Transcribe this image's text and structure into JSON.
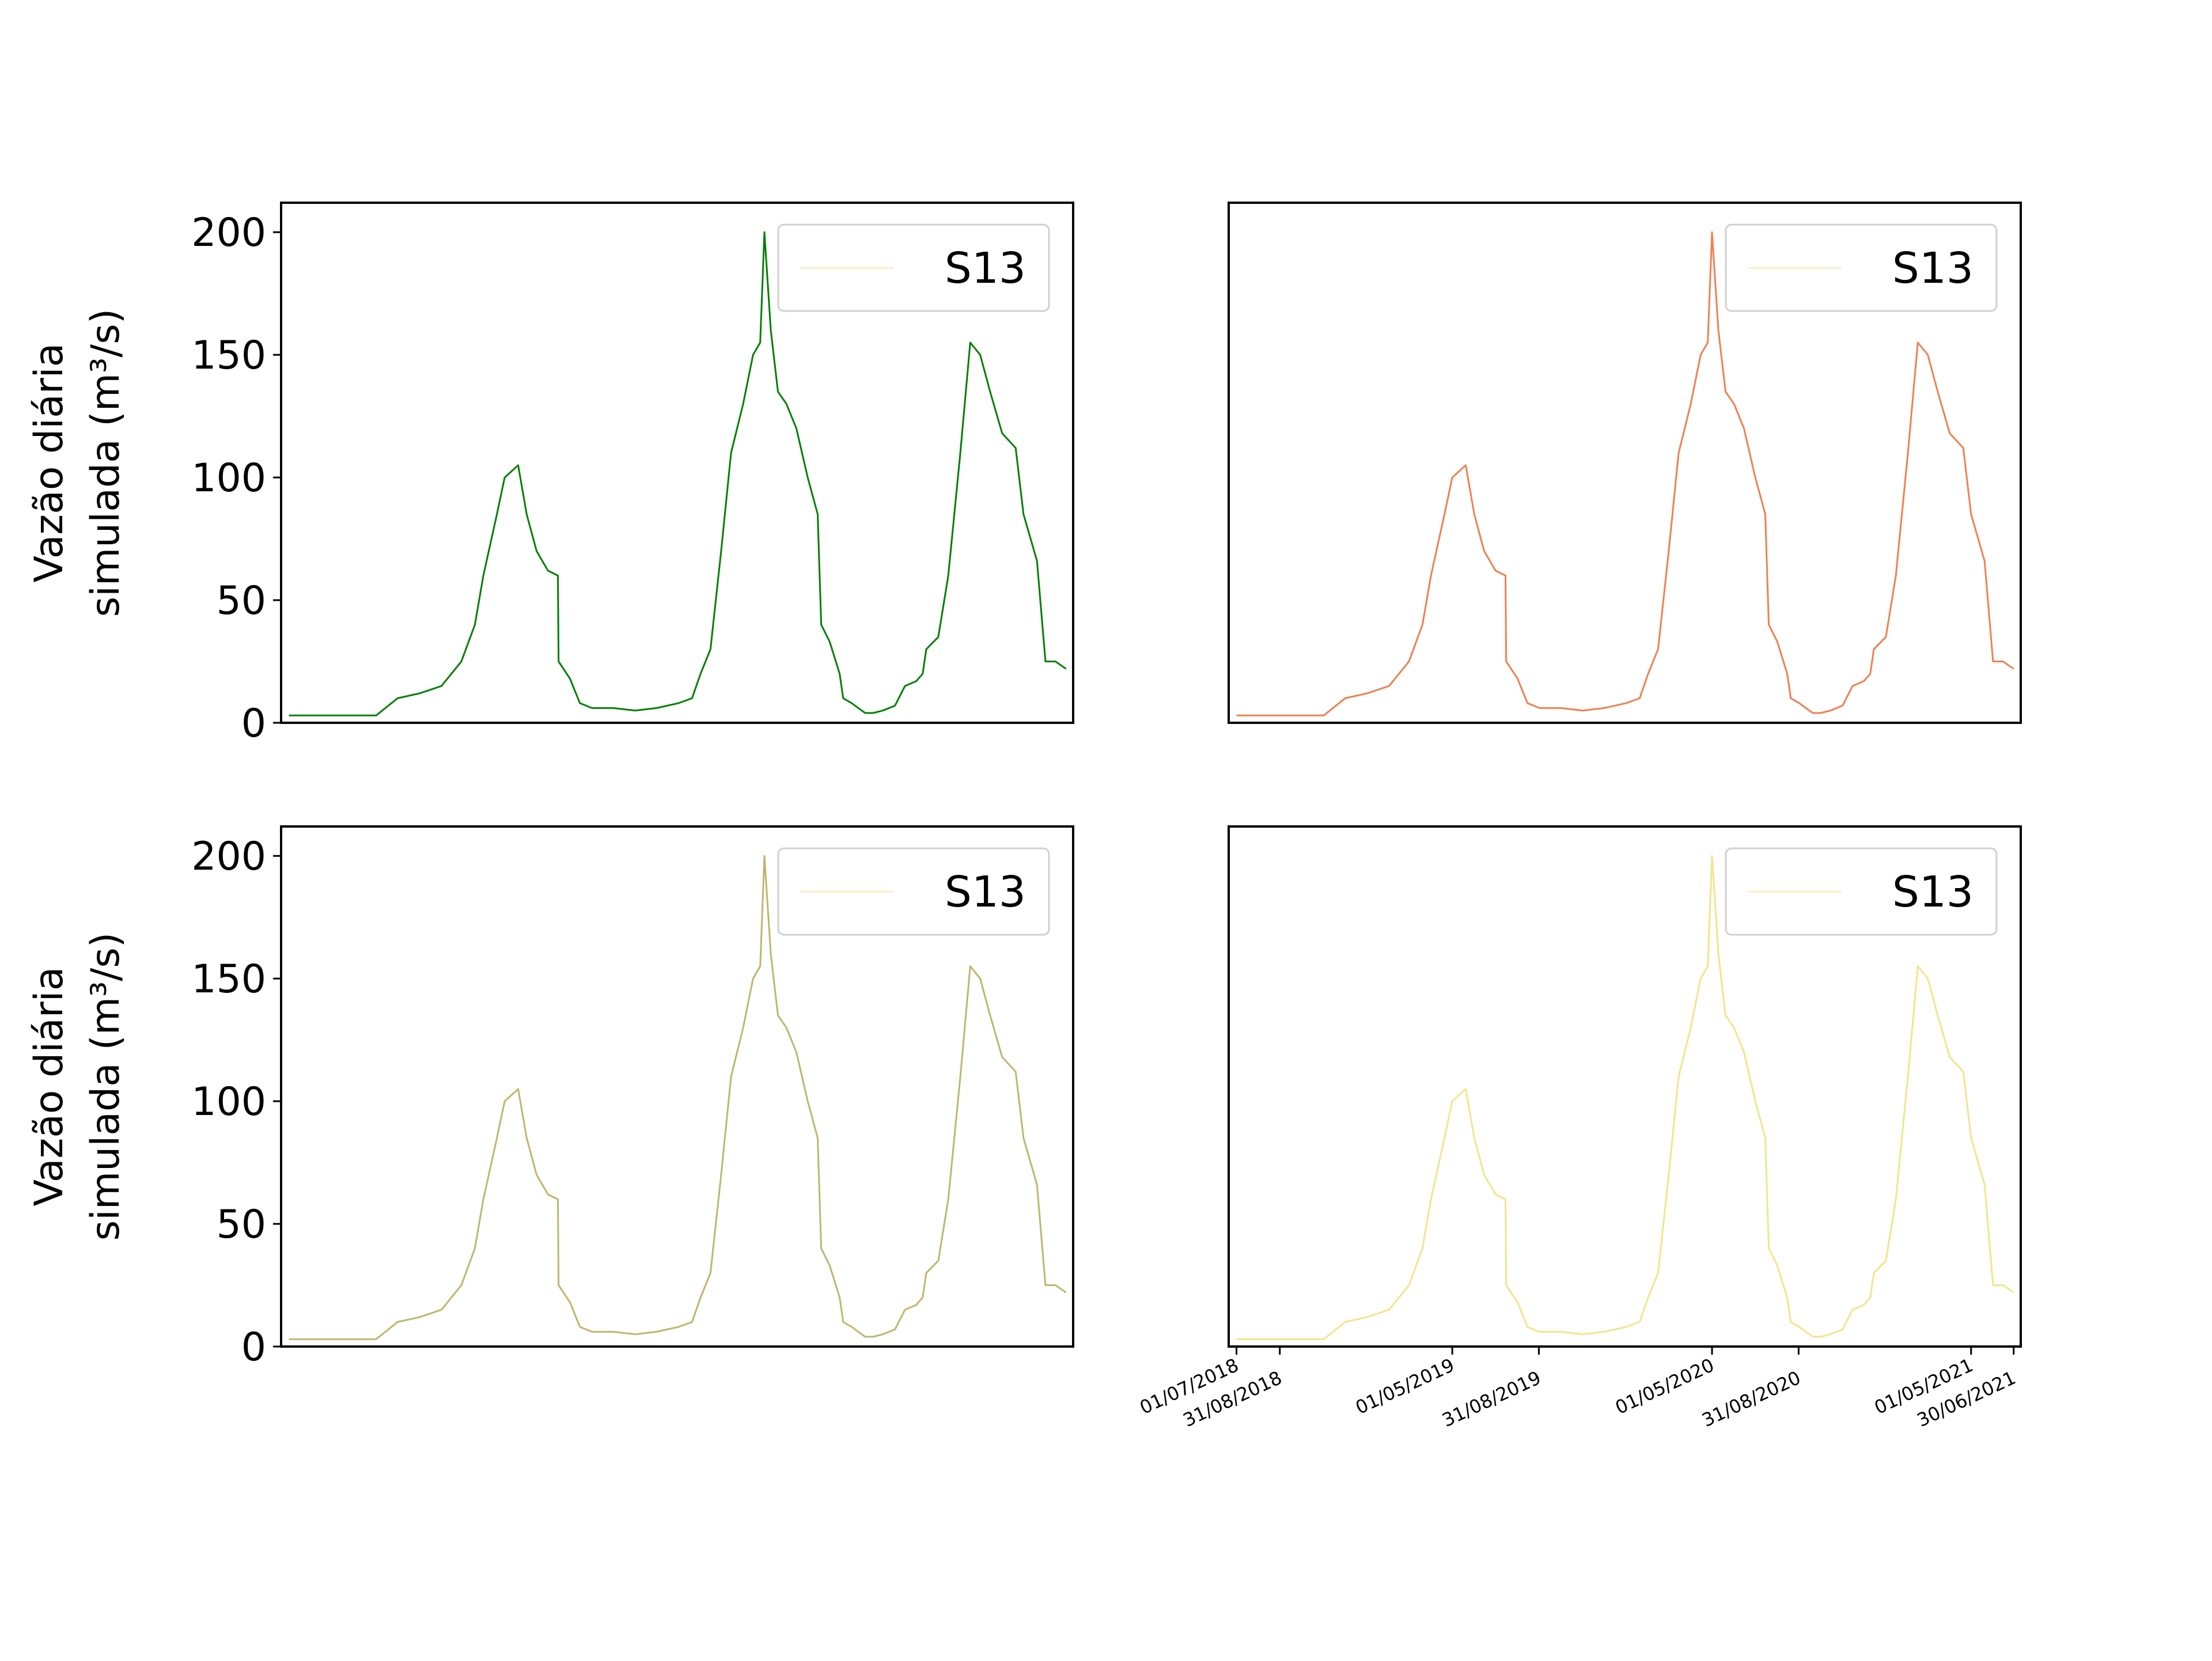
{
  "figure": {
    "y_axis_label_line1": "Vazão diária",
    "y_axis_label_line2": "simulada (m³/s)"
  },
  "chart_data": [
    {
      "type": "line",
      "panel": "top-left",
      "title": "",
      "ylabel": "Vazão diária simulada (m³/s)",
      "ylim": [
        0,
        212
      ],
      "yticks": [
        "0",
        "50",
        "100",
        "150",
        "200"
      ],
      "xlim": [
        "2018-06-20",
        "2021-07-10"
      ],
      "x_axis_visible": false,
      "legend": {
        "label": "S13",
        "position": "upper right"
      },
      "series": [
        {
          "color": "#008000",
          "x": [
            "2018-07-01",
            "2018-11-01",
            "2018-12-01",
            "2019-01-01",
            "2019-02-01",
            "2019-03-01",
            "2019-03-20",
            "2019-04-01",
            "2019-04-20",
            "2019-05-01",
            "2019-05-20",
            "2019-06-01",
            "2019-06-15",
            "2019-07-01",
            "2019-07-15",
            "2019-07-16",
            "2019-08-01",
            "2019-08-15",
            "2019-09-01",
            "2019-10-01",
            "2019-11-01",
            "2019-12-01",
            "2020-01-01",
            "2020-01-20",
            "2020-02-01",
            "2020-02-15",
            "2020-03-01",
            "2020-03-15",
            "2020-04-01",
            "2020-04-15",
            "2020-04-25",
            "2020-05-01",
            "2020-05-10",
            "2020-05-20",
            "2020-06-01",
            "2020-06-15",
            "2020-07-01",
            "2020-07-15",
            "2020-07-20",
            "2020-08-01",
            "2020-08-15",
            "2020-08-20",
            "2020-09-01",
            "2020-09-15",
            "2020-09-20",
            "2020-10-01",
            "2020-10-15",
            "2020-11-01",
            "2020-11-15",
            "2020-12-01",
            "2020-12-10",
            "2020-12-15",
            "2021-01-01",
            "2021-01-15",
            "2021-02-01",
            "2021-02-15",
            "2021-03-01",
            "2021-03-15",
            "2021-04-01",
            "2021-04-20",
            "2021-05-01",
            "2021-05-20",
            "2021-06-01",
            "2021-06-15",
            "2021-06-30"
          ],
          "y": [
            3,
            3,
            10,
            12,
            15,
            25,
            40,
            60,
            85,
            100,
            105,
            85,
            70,
            62,
            60,
            25,
            18,
            8,
            6,
            6,
            5,
            6,
            8,
            10,
            20,
            30,
            70,
            110,
            130,
            150,
            155,
            200,
            160,
            135,
            130,
            120,
            100,
            85,
            40,
            33,
            20,
            10,
            8,
            5,
            4,
            4,
            5,
            7,
            15,
            17,
            20,
            30,
            35,
            60,
            110,
            155,
            150,
            135,
            118,
            112,
            85,
            66,
            25,
            25,
            22
          ]
        }
      ]
    },
    {
      "type": "line",
      "panel": "top-right",
      "title": "",
      "ylim": [
        0,
        212
      ],
      "xlim": [
        "2018-06-20",
        "2021-07-10"
      ],
      "x_axis_visible": false,
      "y_axis_visible": false,
      "legend": {
        "label": "S13",
        "position": "upper right"
      },
      "series": [
        {
          "color": "#f08050",
          "x": [
            "2018-07-01",
            "2018-11-01",
            "2018-12-01",
            "2019-01-01",
            "2019-02-01",
            "2019-03-01",
            "2019-03-20",
            "2019-04-01",
            "2019-04-20",
            "2019-05-01",
            "2019-05-20",
            "2019-06-01",
            "2019-06-15",
            "2019-07-01",
            "2019-07-15",
            "2019-07-16",
            "2019-08-01",
            "2019-08-15",
            "2019-09-01",
            "2019-10-01",
            "2019-11-01",
            "2019-12-01",
            "2020-01-01",
            "2020-01-20",
            "2020-02-01",
            "2020-02-15",
            "2020-03-01",
            "2020-03-15",
            "2020-04-01",
            "2020-04-15",
            "2020-04-25",
            "2020-05-01",
            "2020-05-10",
            "2020-05-20",
            "2020-06-01",
            "2020-06-15",
            "2020-07-01",
            "2020-07-15",
            "2020-07-20",
            "2020-08-01",
            "2020-08-15",
            "2020-08-20",
            "2020-09-01",
            "2020-09-15",
            "2020-09-20",
            "2020-10-01",
            "2020-10-15",
            "2020-11-01",
            "2020-11-15",
            "2020-12-01",
            "2020-12-10",
            "2020-12-15",
            "2021-01-01",
            "2021-01-15",
            "2021-02-01",
            "2021-02-15",
            "2021-03-01",
            "2021-03-15",
            "2021-04-01",
            "2021-04-20",
            "2021-05-01",
            "2021-05-20",
            "2021-06-01",
            "2021-06-15",
            "2021-06-30"
          ],
          "y": [
            3,
            3,
            10,
            12,
            15,
            25,
            40,
            60,
            85,
            100,
            105,
            85,
            70,
            62,
            60,
            25,
            18,
            8,
            6,
            6,
            5,
            6,
            8,
            10,
            20,
            30,
            70,
            110,
            130,
            150,
            155,
            200,
            160,
            135,
            130,
            120,
            100,
            85,
            40,
            33,
            20,
            10,
            8,
            5,
            4,
            4,
            5,
            7,
            15,
            17,
            20,
            30,
            35,
            60,
            110,
            155,
            150,
            135,
            118,
            112,
            85,
            66,
            25,
            25,
            22
          ]
        }
      ]
    },
    {
      "type": "line",
      "panel": "bottom-left",
      "title": "",
      "ylabel": "Vazão diária simulada (m³/s)",
      "ylim": [
        0,
        212
      ],
      "yticks": [
        "0",
        "50",
        "100",
        "150",
        "200"
      ],
      "xlim": [
        "2018-06-20",
        "2021-07-10"
      ],
      "x_axis_visible": false,
      "legend": {
        "label": "S13",
        "position": "upper right"
      },
      "series": [
        {
          "color": "#bdb76b",
          "x": [
            "2018-07-01",
            "2018-11-01",
            "2018-12-01",
            "2019-01-01",
            "2019-02-01",
            "2019-03-01",
            "2019-03-20",
            "2019-04-01",
            "2019-04-20",
            "2019-05-01",
            "2019-05-20",
            "2019-06-01",
            "2019-06-15",
            "2019-07-01",
            "2019-07-15",
            "2019-07-16",
            "2019-08-01",
            "2019-08-15",
            "2019-09-01",
            "2019-10-01",
            "2019-11-01",
            "2019-12-01",
            "2020-01-01",
            "2020-01-20",
            "2020-02-01",
            "2020-02-15",
            "2020-03-01",
            "2020-03-15",
            "2020-04-01",
            "2020-04-15",
            "2020-04-25",
            "2020-05-01",
            "2020-05-10",
            "2020-05-20",
            "2020-06-01",
            "2020-06-15",
            "2020-07-01",
            "2020-07-15",
            "2020-07-20",
            "2020-08-01",
            "2020-08-15",
            "2020-08-20",
            "2020-09-01",
            "2020-09-15",
            "2020-09-20",
            "2020-10-01",
            "2020-10-15",
            "2020-11-01",
            "2020-11-15",
            "2020-12-01",
            "2020-12-10",
            "2020-12-15",
            "2021-01-01",
            "2021-01-15",
            "2021-02-01",
            "2021-02-15",
            "2021-03-01",
            "2021-03-15",
            "2021-04-01",
            "2021-04-20",
            "2021-05-01",
            "2021-05-20",
            "2021-06-01",
            "2021-06-15",
            "2021-06-30"
          ],
          "y": [
            3,
            3,
            10,
            12,
            15,
            25,
            40,
            60,
            85,
            100,
            105,
            85,
            70,
            62,
            60,
            25,
            18,
            8,
            6,
            6,
            5,
            6,
            8,
            10,
            20,
            30,
            70,
            110,
            130,
            150,
            155,
            200,
            160,
            135,
            130,
            120,
            100,
            85,
            40,
            33,
            20,
            10,
            8,
            5,
            4,
            4,
            5,
            7,
            15,
            17,
            20,
            30,
            35,
            60,
            110,
            155,
            150,
            135,
            118,
            112,
            85,
            66,
            25,
            25,
            22
          ]
        }
      ]
    },
    {
      "type": "line",
      "panel": "bottom-right",
      "title": "",
      "ylim": [
        0,
        212
      ],
      "xlim": [
        "2018-06-20",
        "2021-07-10"
      ],
      "y_axis_visible": false,
      "xtick_values": [
        "2018-07-01",
        "2018-08-31",
        "2019-05-01",
        "2019-08-31",
        "2020-05-01",
        "2020-08-31",
        "2021-05-01",
        "2021-06-30"
      ],
      "xticks": [
        "01/07/2018",
        "31/08/2018",
        "01/05/2019",
        "31/08/2019",
        "01/05/2020",
        "31/08/2020",
        "01/05/2021",
        "30/06/2021"
      ],
      "legend": {
        "label": "S13",
        "position": "upper right"
      },
      "series": [
        {
          "color": "#f0e68c",
          "x": [
            "2018-07-01",
            "2018-11-01",
            "2018-12-01",
            "2019-01-01",
            "2019-02-01",
            "2019-03-01",
            "2019-03-20",
            "2019-04-01",
            "2019-04-20",
            "2019-05-01",
            "2019-05-20",
            "2019-06-01",
            "2019-06-15",
            "2019-07-01",
            "2019-07-15",
            "2019-07-16",
            "2019-08-01",
            "2019-08-15",
            "2019-09-01",
            "2019-10-01",
            "2019-11-01",
            "2019-12-01",
            "2020-01-01",
            "2020-01-20",
            "2020-02-01",
            "2020-02-15",
            "2020-03-01",
            "2020-03-15",
            "2020-04-01",
            "2020-04-15",
            "2020-04-25",
            "2020-05-01",
            "2020-05-10",
            "2020-05-20",
            "2020-06-01",
            "2020-06-15",
            "2020-07-01",
            "2020-07-15",
            "2020-07-20",
            "2020-08-01",
            "2020-08-15",
            "2020-08-20",
            "2020-09-01",
            "2020-09-15",
            "2020-09-20",
            "2020-10-01",
            "2020-10-15",
            "2020-11-01",
            "2020-11-15",
            "2020-12-01",
            "2020-12-10",
            "2020-12-15",
            "2021-01-01",
            "2021-01-15",
            "2021-02-01",
            "2021-02-15",
            "2021-03-01",
            "2021-03-15",
            "2021-04-01",
            "2021-04-20",
            "2021-05-01",
            "2021-05-20",
            "2021-06-01",
            "2021-06-15",
            "2021-06-30"
          ],
          "y": [
            3,
            3,
            10,
            12,
            15,
            25,
            40,
            60,
            85,
            100,
            105,
            85,
            70,
            62,
            60,
            25,
            18,
            8,
            6,
            6,
            5,
            6,
            8,
            10,
            20,
            30,
            70,
            110,
            130,
            150,
            155,
            200,
            160,
            135,
            130,
            120,
            100,
            85,
            40,
            33,
            20,
            10,
            8,
            5,
            4,
            4,
            5,
            7,
            15,
            17,
            20,
            30,
            35,
            60,
            110,
            155,
            150,
            135,
            118,
            112,
            85,
            66,
            25,
            25,
            22
          ]
        }
      ]
    }
  ]
}
